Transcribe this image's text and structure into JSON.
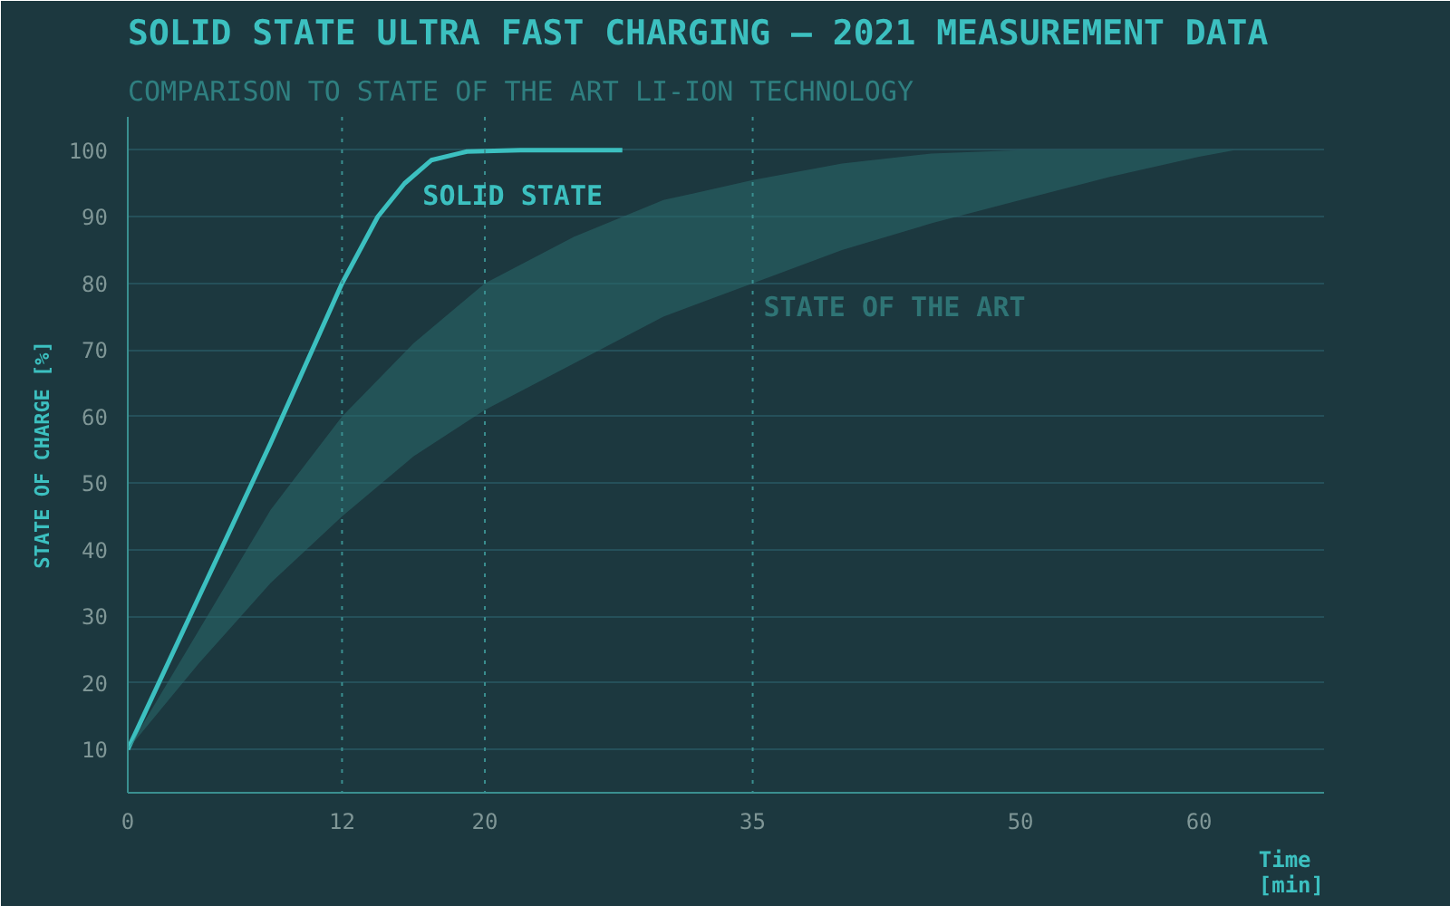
{
  "chart_data": {
    "type": "line",
    "title": "SOLID STATE ULTRA FAST CHARGING – 2021 MEASUREMENT DATA",
    "subtitle": "COMPARISON TO STATE OF THE ART LI-ION TECHNOLOGY",
    "xlabel": "Time\n[min]",
    "ylabel": "STATE OF CHARGE [%]",
    "xlim": [
      0,
      67
    ],
    "ylim": [
      3.5,
      105
    ],
    "xticks": [
      0,
      12,
      20,
      35,
      50,
      60
    ],
    "yticks": [
      10,
      20,
      30,
      40,
      50,
      60,
      70,
      80,
      90,
      100
    ],
    "grid": "y",
    "marker": "none",
    "line_style": "solid",
    "series": [
      {
        "name": "SOLID STATE",
        "color": "#3cc0c0",
        "x": [
          0,
          4,
          8,
          12,
          14,
          15.5,
          17,
          19,
          22,
          27.7
        ],
        "values": [
          10,
          33,
          56,
          80,
          90,
          95,
          98.5,
          99.8,
          100,
          100
        ]
      },
      {
        "name": "STATE OF THE ART",
        "type": "line",
        "color": "#2a6a6b",
        "x": [
          0,
          4,
          8,
          12,
          16,
          20,
          25,
          30,
          35,
          40,
          45,
          50,
          55,
          60,
          62
        ],
        "values": [
          null,
          null,
          null,
          null,
          null,
          null,
          null,
          null,
          null,
          null,
          null,
          null,
          null,
          null,
          null
        ],
        "upper": [
          10,
          28,
          46,
          60,
          71,
          80,
          87,
          92.5,
          95.5,
          98,
          99.5,
          100,
          100,
          100,
          100
        ],
        "lower": [
          10,
          23,
          35,
          45,
          54,
          61,
          68,
          75,
          80,
          85,
          89,
          92.5,
          96,
          99,
          100
        ]
      }
    ],
    "ref_lines": [
      {
        "axis": "x",
        "value": 12,
        "color": "#3a8f90",
        "line_style": "dotted"
      },
      {
        "axis": "x",
        "value": 20,
        "color": "#3a8f90",
        "line_style": "dotted"
      },
      {
        "axis": "x",
        "value": 35,
        "color": "#3a8f90",
        "line_style": "dotted"
      }
    ]
  }
}
